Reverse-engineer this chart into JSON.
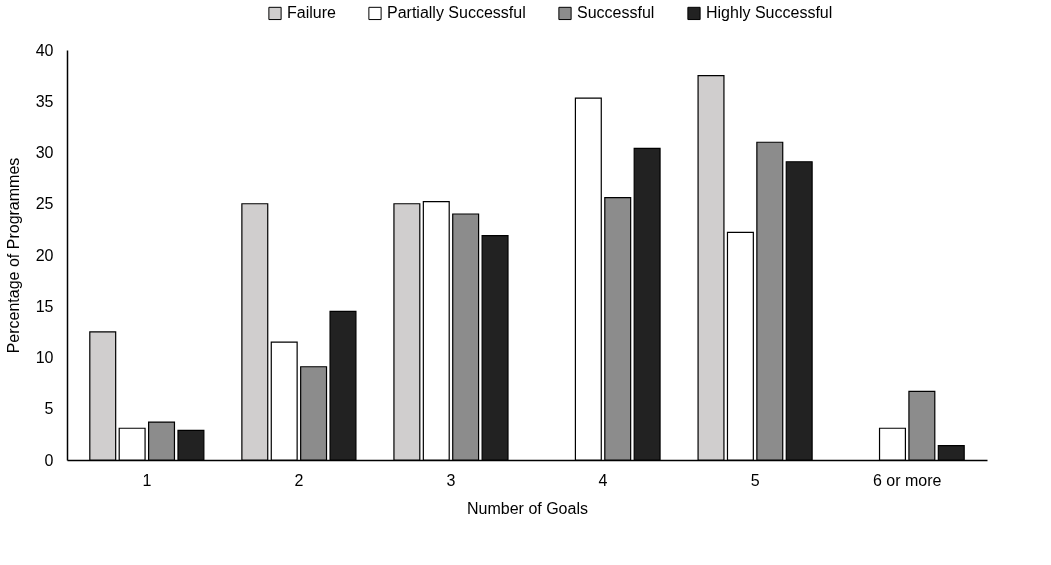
{
  "chart_data": {
    "type": "bar",
    "xlabel": "Number of Goals",
    "ylabel": "Percentage of Programmes",
    "categories": [
      "1",
      "2",
      "3",
      "4",
      "5",
      "6 or more"
    ],
    "series": [
      {
        "name": "Failure",
        "color": "#d0cece",
        "values": [
          12.5,
          25.0,
          25.0,
          null,
          37.5,
          null
        ]
      },
      {
        "name": "Partially Successful",
        "color": "#ffffff",
        "values": [
          3.1,
          11.5,
          25.2,
          35.3,
          22.2,
          3.1
        ]
      },
      {
        "name": "Successful",
        "color": "#8c8c8c",
        "values": [
          3.7,
          9.1,
          24.0,
          25.6,
          31.0,
          6.7
        ]
      },
      {
        "name": "Highly Successful",
        "color": "#222222",
        "values": [
          2.9,
          14.5,
          21.9,
          30.4,
          29.1,
          1.4
        ]
      }
    ],
    "ylim": [
      0,
      40
    ],
    "yticks": [
      0,
      5,
      10,
      15,
      20,
      25,
      30,
      35,
      40
    ],
    "grid": false,
    "legend": "top"
  }
}
